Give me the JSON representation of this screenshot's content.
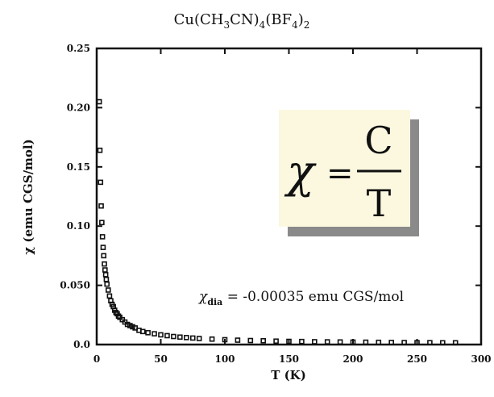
{
  "chart_data": {
    "type": "scatter",
    "title": {
      "base": "Cu(CH",
      "sub1": "3",
      "mid1": "CN)",
      "sub2": "4",
      "mid2": "(BF",
      "sub3": "4",
      "end": ")",
      "sub4": "2"
    },
    "xlabel": "T (K)",
    "ylabel": "χ (emu CGS/mol)",
    "xlim": [
      0,
      300
    ],
    "ylim": [
      0,
      0.25
    ],
    "x_ticks": [
      0,
      50,
      100,
      150,
      200,
      250,
      300
    ],
    "x_tick_labels": [
      "0",
      "50",
      "100",
      "150",
      "200",
      "250",
      "300"
    ],
    "y_ticks": [
      0,
      0.05,
      0.1,
      0.15,
      0.2,
      0.25
    ],
    "y_tick_labels": [
      "0.0",
      "0.050",
      "0.10",
      "0.15",
      "0.20",
      "0.25"
    ],
    "grid": false,
    "formula": {
      "lhs": "χ",
      "eq": "=",
      "numerator": "C",
      "denominator": "T",
      "box_color": "#fbf8df",
      "shadow_color": "#8a8a8a"
    },
    "annotation": {
      "symbol": "χ",
      "subscript": "dia",
      "text": " = -0.00035 emu CGS/mol"
    },
    "series": [
      {
        "marker": "square",
        "color": "#111111",
        "x": [
          2,
          2.5,
          3,
          3.5,
          4,
          4.5,
          5,
          5.5,
          6,
          6.5,
          7,
          7.5,
          8,
          9,
          10,
          11,
          12,
          13,
          14,
          15,
          16,
          17,
          18,
          20,
          22,
          24,
          26,
          28,
          30,
          33,
          36,
          40,
          45,
          50,
          55,
          60,
          65,
          70,
          75,
          80,
          90,
          100,
          110,
          120,
          130,
          140,
          150,
          160,
          170,
          180,
          190,
          200,
          210,
          220,
          230,
          240,
          250,
          260,
          270,
          280
        ],
        "y": [
          0.205,
          0.164,
          0.137,
          0.117,
          0.103,
          0.091,
          0.082,
          0.075,
          0.068,
          0.063,
          0.059,
          0.055,
          0.051,
          0.046,
          0.041,
          0.037,
          0.034,
          0.032,
          0.029,
          0.027,
          0.026,
          0.024,
          0.023,
          0.021,
          0.019,
          0.017,
          0.016,
          0.015,
          0.014,
          0.012,
          0.011,
          0.01,
          0.0091,
          0.0082,
          0.0075,
          0.0068,
          0.0063,
          0.0059,
          0.0055,
          0.0051,
          0.0046,
          0.0041,
          0.0037,
          0.0034,
          0.0032,
          0.0029,
          0.0027,
          0.0026,
          0.0024,
          0.0023,
          0.0022,
          0.0021,
          0.002,
          0.0019,
          0.0018,
          0.0017,
          0.0016,
          0.0016,
          0.0015,
          0.0015
        ]
      }
    ]
  }
}
